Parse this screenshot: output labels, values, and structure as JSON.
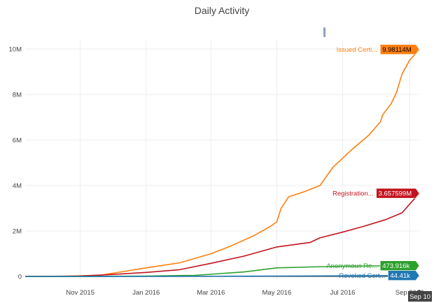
{
  "chart_data": {
    "type": "line",
    "title": "Daily Activity",
    "xlabel": "",
    "ylabel": "",
    "x_range": [
      "2015-09-11",
      "2016-09-10"
    ],
    "x_ticks": [
      {
        "date": "2015-11-01",
        "label": "Nov 2015"
      },
      {
        "date": "2016-01-01",
        "label": "Jan 2016"
      },
      {
        "date": "2016-03-01",
        "label": "Mar 2016"
      },
      {
        "date": "2016-05-01",
        "label": "May 2016"
      },
      {
        "date": "2016-07-01",
        "label": "Jul 2016"
      },
      {
        "date": "2016-09-01",
        "label": "Sep 2016"
      }
    ],
    "ylim": [
      -150000,
      10400000
    ],
    "y_ticks": [
      {
        "value": 0,
        "label": "0"
      },
      {
        "value": 2000000,
        "label": "2M"
      },
      {
        "value": 4000000,
        "label": "4M"
      },
      {
        "value": 6000000,
        "label": "6M"
      },
      {
        "value": 8000000,
        "label": "8M"
      },
      {
        "value": 10000000,
        "label": "10M"
      }
    ],
    "hover_date_label": "Sep 10",
    "series": [
      {
        "name": "Issued Certificates",
        "label_short": "Issued Certi...",
        "value_label": "9.98114M",
        "color": "#ff7f0e",
        "label_color": "#000000",
        "x": [
          "2015-09-11",
          "2015-10-15",
          "2015-11-20",
          "2015-12-15",
          "2016-01-01",
          "2016-02-01",
          "2016-03-01",
          "2016-03-20",
          "2016-04-10",
          "2016-04-25",
          "2016-05-01",
          "2016-05-05",
          "2016-05-12",
          "2016-05-25",
          "2016-06-10",
          "2016-06-22",
          "2016-07-10",
          "2016-07-25",
          "2016-08-05",
          "2016-08-07",
          "2016-08-15",
          "2016-08-20",
          "2016-08-25",
          "2016-09-01",
          "2016-09-10"
        ],
        "values": [
          0,
          10000,
          60000,
          250000,
          380000,
          600000,
          1000000,
          1350000,
          1800000,
          2200000,
          2400000,
          3000000,
          3500000,
          3700000,
          4000000,
          4800000,
          5600000,
          6200000,
          6800000,
          7100000,
          7600000,
          8100000,
          8900000,
          9500000,
          9981140
        ]
      },
      {
        "name": "Registrations",
        "label_short": "Registration...",
        "value_label": "3.657599M",
        "color": "#c3141e",
        "label_color": "#ffffff",
        "x": [
          "2015-09-11",
          "2015-11-01",
          "2015-12-01",
          "2016-01-01",
          "2016-02-01",
          "2016-03-01",
          "2016-04-01",
          "2016-05-01",
          "2016-06-01",
          "2016-06-10",
          "2016-07-01",
          "2016-07-20",
          "2016-08-10",
          "2016-08-25",
          "2016-09-10"
        ],
        "values": [
          0,
          20000,
          90000,
          180000,
          300000,
          580000,
          900000,
          1300000,
          1500000,
          1700000,
          1950000,
          2200000,
          2500000,
          2800000,
          3657599
        ]
      },
      {
        "name": "Anonymous Registrations",
        "label_short": "Anonymous Re...",
        "value_label": "473.916k",
        "color": "#2ca02c",
        "label_color": "#ffffff",
        "x": [
          "2015-09-11",
          "2015-11-01",
          "2016-01-01",
          "2016-02-15",
          "2016-04-01",
          "2016-05-01",
          "2016-06-01",
          "2016-07-01",
          "2016-08-01",
          "2016-09-10"
        ],
        "values": [
          0,
          5000,
          20000,
          50000,
          200000,
          380000,
          420000,
          450000,
          465000,
          473916
        ]
      },
      {
        "name": "Revoked Certificates",
        "label_short": "Revoked Cert...",
        "value_label": "44.41k",
        "color": "#1f77b4",
        "label_color": "#ffffff",
        "x": [
          "2015-09-11",
          "2016-01-01",
          "2016-05-01",
          "2016-09-10"
        ],
        "values": [
          0,
          5000,
          20000,
          44410
        ]
      }
    ]
  }
}
